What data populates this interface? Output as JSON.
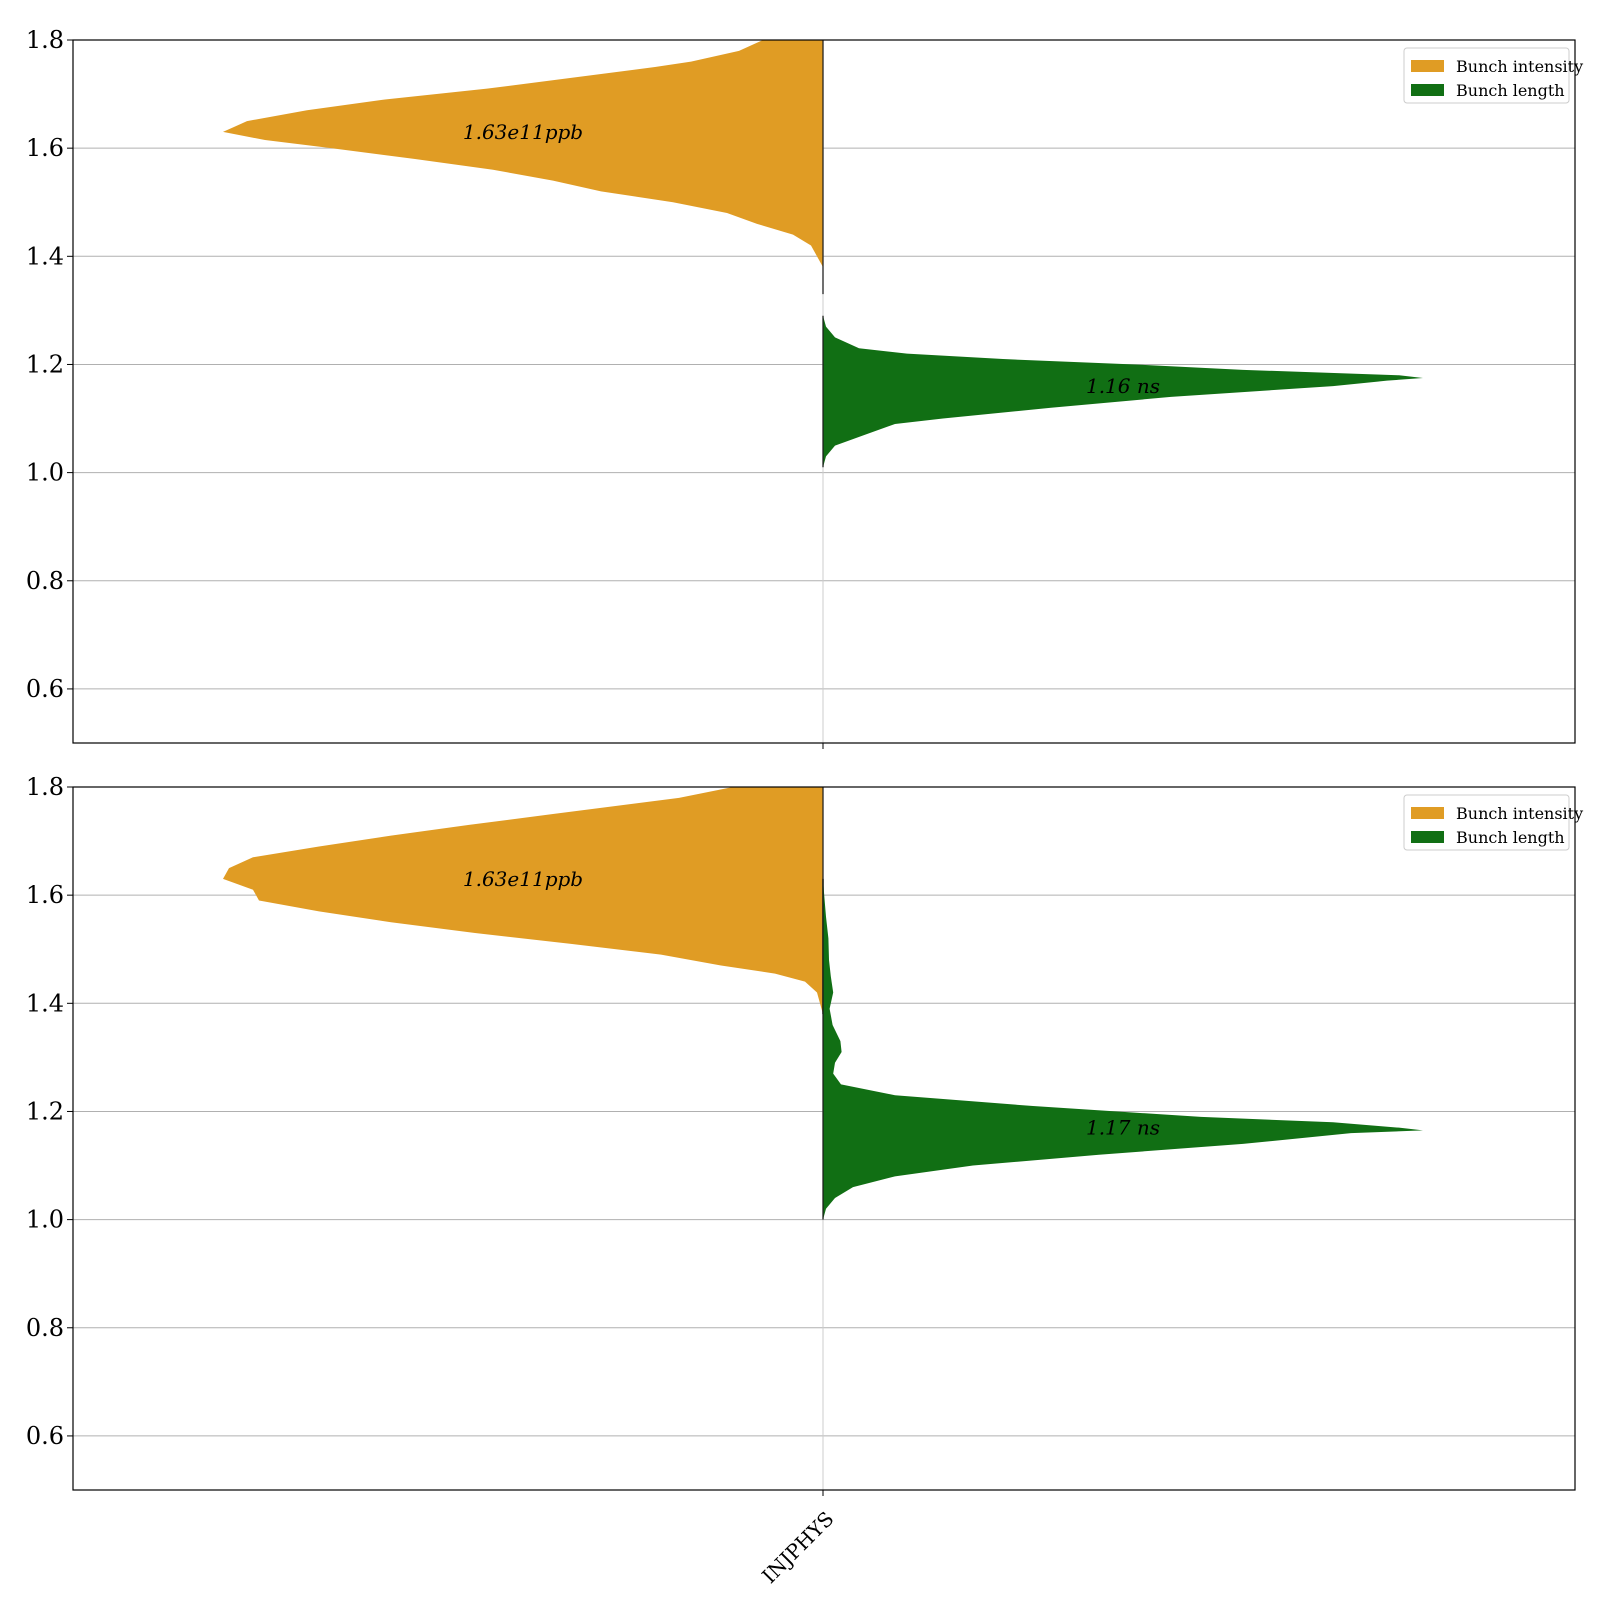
{
  "chart_data": [
    {
      "type": "violin",
      "category": "INJPHYS",
      "ylim": [
        0.5,
        1.8
      ],
      "yticks": [
        0.6,
        0.8,
        1.0,
        1.2,
        1.4,
        1.6,
        1.8
      ],
      "ytick_labels": [
        "0.6",
        "0.8",
        "1.0",
        "1.2",
        "1.4",
        "1.6",
        "1.8"
      ],
      "grid": "y",
      "legend_position": "top-right",
      "series": [
        {
          "name": "Bunch intensity",
          "color": "#e09c24",
          "side": "left",
          "annotation": "1.63e11ppb",
          "annotation_y": 1.63,
          "profile": [
            [
              1.33,
              0.0
            ],
            [
              1.38,
              0.0
            ],
            [
              1.42,
              0.02
            ],
            [
              1.44,
              0.05
            ],
            [
              1.46,
              0.11
            ],
            [
              1.48,
              0.16
            ],
            [
              1.5,
              0.25
            ],
            [
              1.52,
              0.37
            ],
            [
              1.54,
              0.45
            ],
            [
              1.56,
              0.55
            ],
            [
              1.58,
              0.68
            ],
            [
              1.6,
              0.82
            ],
            [
              1.615,
              0.93
            ],
            [
              1.63,
              1.0
            ],
            [
              1.65,
              0.96
            ],
            [
              1.67,
              0.86
            ],
            [
              1.69,
              0.73
            ],
            [
              1.71,
              0.56
            ],
            [
              1.73,
              0.42
            ],
            [
              1.75,
              0.28
            ],
            [
              1.76,
              0.22
            ],
            [
              1.78,
              0.14
            ],
            [
              1.8,
              0.1
            ]
          ]
        },
        {
          "name": "Bunch length",
          "color": "#116f14",
          "side": "right",
          "annotation": "1.16 ns",
          "annotation_y": 1.16,
          "profile": [
            [
              1.01,
              0.0
            ],
            [
              1.03,
              0.005
            ],
            [
              1.05,
              0.02
            ],
            [
              1.07,
              0.07
            ],
            [
              1.09,
              0.12
            ],
            [
              1.1,
              0.2
            ],
            [
              1.12,
              0.38
            ],
            [
              1.14,
              0.58
            ],
            [
              1.16,
              0.85
            ],
            [
              1.17,
              0.94
            ],
            [
              1.175,
              1.0
            ],
            [
              1.18,
              0.96
            ],
            [
              1.19,
              0.7
            ],
            [
              1.2,
              0.52
            ],
            [
              1.21,
              0.3
            ],
            [
              1.22,
              0.14
            ],
            [
              1.23,
              0.06
            ],
            [
              1.25,
              0.02
            ],
            [
              1.27,
              0.005
            ],
            [
              1.29,
              0.0
            ]
          ]
        }
      ]
    },
    {
      "type": "violin",
      "category": "INJPHYS",
      "xtick_label": "INJPHYS",
      "ylim": [
        0.5,
        1.8
      ],
      "yticks": [
        0.6,
        0.8,
        1.0,
        1.2,
        1.4,
        1.6,
        1.8
      ],
      "ytick_labels": [
        "0.6",
        "0.8",
        "1.0",
        "1.2",
        "1.4",
        "1.6",
        "1.8"
      ],
      "grid": "y",
      "legend_position": "top-right",
      "series": [
        {
          "name": "Bunch intensity",
          "color": "#e09c24",
          "side": "left",
          "annotation": "1.63e11ppb",
          "annotation_y": 1.63,
          "profile": [
            [
              1.38,
              0.0
            ],
            [
              1.42,
              0.01
            ],
            [
              1.44,
              0.03
            ],
            [
              1.455,
              0.08
            ],
            [
              1.47,
              0.17
            ],
            [
              1.49,
              0.27
            ],
            [
              1.51,
              0.42
            ],
            [
              1.53,
              0.58
            ],
            [
              1.55,
              0.72
            ],
            [
              1.57,
              0.84
            ],
            [
              1.59,
              0.94
            ],
            [
              1.61,
              0.95
            ],
            [
              1.63,
              1.0
            ],
            [
              1.65,
              0.99
            ],
            [
              1.67,
              0.95
            ],
            [
              1.69,
              0.84
            ],
            [
              1.71,
              0.72
            ],
            [
              1.73,
              0.59
            ],
            [
              1.75,
              0.45
            ],
            [
              1.77,
              0.31
            ],
            [
              1.78,
              0.24
            ],
            [
              1.8,
              0.15
            ]
          ]
        },
        {
          "name": "Bunch length",
          "color": "#116f14",
          "side": "right",
          "annotation": "1.17 ns",
          "annotation_y": 1.17,
          "profile": [
            [
              1.0,
              0.0
            ],
            [
              1.02,
              0.005
            ],
            [
              1.04,
              0.02
            ],
            [
              1.06,
              0.05
            ],
            [
              1.08,
              0.12
            ],
            [
              1.1,
              0.25
            ],
            [
              1.12,
              0.46
            ],
            [
              1.14,
              0.7
            ],
            [
              1.16,
              0.88
            ],
            [
              1.17,
              0.96
            ],
            [
              1.165,
              1.0
            ],
            [
              1.18,
              0.85
            ],
            [
              1.19,
              0.63
            ],
            [
              1.21,
              0.35
            ],
            [
              1.23,
              0.12
            ],
            [
              1.25,
              0.03
            ],
            [
              1.27,
              0.017
            ],
            [
              1.29,
              0.02
            ],
            [
              1.31,
              0.031
            ],
            [
              1.33,
              0.029
            ],
            [
              1.36,
              0.016
            ],
            [
              1.39,
              0.011
            ],
            [
              1.42,
              0.017
            ],
            [
              1.45,
              0.013
            ],
            [
              1.48,
              0.01
            ],
            [
              1.52,
              0.009
            ],
            [
              1.56,
              0.005
            ],
            [
              1.6,
              0.002
            ],
            [
              1.63,
              0.0
            ]
          ]
        }
      ]
    }
  ]
}
